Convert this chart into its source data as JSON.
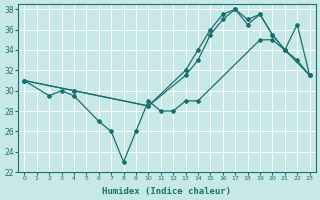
{
  "xlabel": "Humidex (Indice chaleur)",
  "bg_color": "#c8e8e8",
  "line_color": "#1a7070",
  "grid_color": "#ffffff",
  "ylim": [
    22,
    38.5
  ],
  "xlim": [
    -0.5,
    23.5
  ],
  "yticks": [
    22,
    24,
    26,
    28,
    30,
    32,
    34,
    36,
    38
  ],
  "xticks": [
    0,
    1,
    2,
    3,
    4,
    5,
    6,
    7,
    8,
    9,
    10,
    11,
    12,
    13,
    14,
    15,
    16,
    17,
    18,
    19,
    20,
    21,
    22,
    23
  ],
  "series": [
    {
      "x": [
        0,
        2,
        3,
        4,
        6,
        7,
        8,
        9,
        10,
        11,
        12,
        13,
        14,
        19,
        20,
        21,
        23
      ],
      "y": [
        31,
        29.5,
        30,
        29.5,
        27,
        26,
        23,
        26,
        29,
        28,
        28,
        29,
        29,
        35,
        35,
        34,
        31.5
      ]
    },
    {
      "x": [
        0,
        4,
        10,
        13,
        14,
        15,
        16,
        17,
        18,
        19,
        20,
        21,
        22,
        23
      ],
      "y": [
        31,
        30,
        28.5,
        32,
        34,
        36,
        37.5,
        38,
        37,
        37.5,
        35.5,
        34,
        33,
        31.5
      ]
    },
    {
      "x": [
        0,
        4,
        10,
        13,
        14,
        15,
        16,
        17,
        18,
        19,
        20,
        21,
        22,
        23
      ],
      "y": [
        31,
        30,
        28.5,
        31.5,
        33,
        35.5,
        37,
        38,
        36.5,
        37.5,
        35.5,
        34,
        36.5,
        31.5
      ]
    }
  ]
}
